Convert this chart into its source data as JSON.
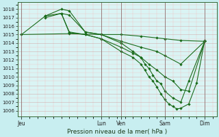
{
  "xlabel": "Pression niveau de la mer( hPa )",
  "background_color": "#c8eef0",
  "plot_bg_color": "#daf4f4",
  "grid_color_minor": "#ffaaaa",
  "grid_color_major": "#cc8888",
  "line_color": "#1a6b1a",
  "ylim_low": 1005.3,
  "ylim_high": 1018.8,
  "yticks": [
    1006,
    1007,
    1008,
    1009,
    1010,
    1011,
    1012,
    1013,
    1014,
    1015,
    1016,
    1017,
    1018
  ],
  "x_tick_labels": [
    "Jeu",
    "Lun",
    "Ven",
    "Sam",
    "Dim"
  ],
  "x_tick_positions": [
    0,
    10,
    12.5,
    18,
    23
  ],
  "xlim_low": -0.5,
  "xlim_high": 24.5,
  "line1": {
    "x": [
      0,
      6,
      10,
      12.5,
      15,
      17,
      18,
      20,
      23
    ],
    "y": [
      1015.0,
      1015.1,
      1015.0,
      1015.0,
      1014.8,
      1014.6,
      1014.5,
      1014.3,
      1014.2
    ]
  },
  "line2": {
    "x": [
      0,
      3,
      5,
      6,
      8,
      10,
      12.5,
      15,
      17,
      18,
      20,
      23
    ],
    "y": [
      1015.0,
      1017.2,
      1017.5,
      1017.3,
      1015.3,
      1015.0,
      1014.2,
      1013.5,
      1013.0,
      1012.5,
      1011.5,
      1014.2
    ]
  },
  "line3": {
    "x": [
      3,
      5,
      6,
      8,
      10,
      12.5,
      14,
      15,
      16,
      17,
      18,
      19,
      20,
      21,
      23
    ],
    "y": [
      1017.2,
      1018.0,
      1017.8,
      1015.3,
      1015.0,
      1014.0,
      1013.0,
      1012.3,
      1011.5,
      1010.8,
      1010.0,
      1009.5,
      1008.5,
      1008.3,
      1014.2
    ]
  },
  "line4": {
    "x": [
      3,
      5,
      6,
      8,
      10,
      12.5,
      14,
      15,
      15.5,
      16,
      16.5,
      17,
      17.5,
      18,
      19,
      20,
      21,
      23
    ],
    "y": [
      1017.0,
      1017.5,
      1015.2,
      1015.0,
      1014.5,
      1013.5,
      1012.8,
      1012.3,
      1011.5,
      1011.0,
      1010.2,
      1009.5,
      1009.2,
      1008.3,
      1007.5,
      1007.0,
      1009.5,
      1014.2
    ]
  },
  "line5": {
    "x": [
      5,
      6,
      8,
      10,
      12.5,
      14,
      15,
      15.5,
      16,
      16.5,
      17,
      17.5,
      18,
      18.5,
      19,
      19.5,
      20,
      21,
      22,
      23
    ],
    "y": [
      1017.5,
      1015.3,
      1015.0,
      1014.5,
      1013.0,
      1012.3,
      1011.5,
      1010.8,
      1010.0,
      1009.5,
      1008.8,
      1008.0,
      1007.3,
      1006.8,
      1006.5,
      1006.2,
      1006.3,
      1006.8,
      1009.3,
      1014.3
    ]
  }
}
